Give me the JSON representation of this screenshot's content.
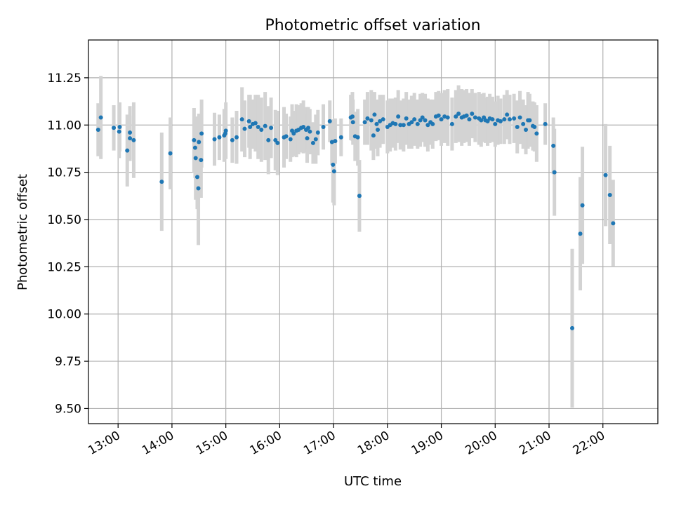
{
  "chart_data": {
    "type": "scatter",
    "title": "Photometric offset variation",
    "xlabel": "UTC time",
    "ylabel": "Photometric offset",
    "x_unit": "hours UTC",
    "xlim": [
      12.45,
      23.02
    ],
    "ylim": [
      9.42,
      11.45
    ],
    "grid": true,
    "x_ticks": [
      "13:00",
      "14:00",
      "15:00",
      "16:00",
      "17:00",
      "18:00",
      "19:00",
      "20:00",
      "21:00",
      "22:00"
    ],
    "x_tick_values": [
      13,
      14,
      15,
      16,
      17,
      18,
      19,
      20,
      21,
      22
    ],
    "y_ticks": [
      "9.50",
      "9.75",
      "10.00",
      "10.25",
      "10.50",
      "10.75",
      "11.00",
      "11.25"
    ],
    "y_tick_values": [
      9.5,
      9.75,
      10.0,
      10.25,
      10.5,
      10.75,
      11.0,
      11.25
    ],
    "colors": {
      "point": "#1f77b4",
      "errorbar": "#d3d3d3",
      "grid": "#b0b0b0"
    },
    "series": [
      {
        "points": [
          [
            12.63,
            10.975,
            0.14
          ],
          [
            12.68,
            11.04,
            0.22
          ],
          [
            12.92,
            10.985,
            0.12
          ],
          [
            13.02,
            10.965,
            0.14
          ],
          [
            13.03,
            10.99,
            0.13
          ],
          [
            13.17,
            10.865,
            0.19
          ],
          [
            13.22,
            10.96,
            0.14
          ],
          [
            13.22,
            10.93,
            0.12
          ],
          [
            13.29,
            10.92,
            0.2
          ],
          [
            13.81,
            10.7,
            0.26
          ],
          [
            13.97,
            10.85,
            0.19
          ],
          [
            14.41,
            10.92,
            0.17
          ],
          [
            14.43,
            10.88,
            0.16
          ],
          [
            14.44,
            10.825,
            0.22
          ],
          [
            14.47,
            10.725,
            0.17
          ],
          [
            14.49,
            10.665,
            0.3
          ],
          [
            14.5,
            10.91,
            0.15
          ],
          [
            14.54,
            10.815,
            0.2
          ],
          [
            14.55,
            10.955,
            0.18
          ],
          [
            14.79,
            10.925,
            0.14
          ],
          [
            14.88,
            10.935,
            0.12
          ],
          [
            14.97,
            10.945,
            0.14
          ],
          [
            14.99,
            10.955,
            0.12
          ],
          [
            15.0,
            10.97,
            0.15
          ],
          [
            15.12,
            10.92,
            0.12
          ],
          [
            15.2,
            10.935,
            0.14
          ],
          [
            15.3,
            11.03,
            0.17
          ],
          [
            15.35,
            10.98,
            0.15
          ],
          [
            15.43,
            11.02,
            0.14
          ],
          [
            15.45,
            10.99,
            0.17
          ],
          [
            15.5,
            11.005,
            0.13
          ],
          [
            15.55,
            11.01,
            0.15
          ],
          [
            15.6,
            10.99,
            0.17
          ],
          [
            15.66,
            10.975,
            0.17
          ],
          [
            15.73,
            10.995,
            0.18
          ],
          [
            15.79,
            10.92,
            0.18
          ],
          [
            15.84,
            10.985,
            0.16
          ],
          [
            15.92,
            10.92,
            0.16
          ],
          [
            15.96,
            10.905,
            0.17
          ],
          [
            16.08,
            10.935,
            0.16
          ],
          [
            16.12,
            10.94,
            0.12
          ],
          [
            16.2,
            10.925,
            0.12
          ],
          [
            16.23,
            10.97,
            0.14
          ],
          [
            16.26,
            10.955,
            0.12
          ],
          [
            16.31,
            10.97,
            0.14
          ],
          [
            16.35,
            10.975,
            0.13
          ],
          [
            16.4,
            10.985,
            0.13
          ],
          [
            16.44,
            10.99,
            0.14
          ],
          [
            16.49,
            10.975,
            0.12
          ],
          [
            16.51,
            10.93,
            0.13
          ],
          [
            16.53,
            10.985,
            0.11
          ],
          [
            16.56,
            10.965,
            0.12
          ],
          [
            16.62,
            10.905,
            0.11
          ],
          [
            16.67,
            10.925,
            0.13
          ],
          [
            16.71,
            10.96,
            0.12
          ],
          [
            16.81,
            10.99,
            0.12
          ],
          [
            16.93,
            11.02,
            0.11
          ],
          [
            16.97,
            10.91,
            0.12
          ],
          [
            16.99,
            10.79,
            0.2
          ],
          [
            17.01,
            10.755,
            0.18
          ],
          [
            17.03,
            10.915,
            0.12
          ],
          [
            17.14,
            10.935,
            0.1
          ],
          [
            17.32,
            11.04,
            0.12
          ],
          [
            17.35,
            11.045,
            0.13
          ],
          [
            17.36,
            11.015,
            0.12
          ],
          [
            17.4,
            10.94,
            0.13
          ],
          [
            17.45,
            10.935,
            0.15
          ],
          [
            17.48,
            10.625,
            0.19
          ],
          [
            17.58,
            11.015,
            0.12
          ],
          [
            17.63,
            11.035,
            0.14
          ],
          [
            17.7,
            11.025,
            0.16
          ],
          [
            17.74,
            10.945,
            0.13
          ],
          [
            17.76,
            11.055,
            0.12
          ],
          [
            17.8,
            11.005,
            0.13
          ],
          [
            17.82,
            10.975,
            0.14
          ],
          [
            17.86,
            11.02,
            0.14
          ],
          [
            17.92,
            11.03,
            0.13
          ],
          [
            18.0,
            10.99,
            0.14
          ],
          [
            18.05,
            11.0,
            0.14
          ],
          [
            18.1,
            11.01,
            0.13
          ],
          [
            18.15,
            11.005,
            0.14
          ],
          [
            18.2,
            11.045,
            0.14
          ],
          [
            18.24,
            11.0,
            0.13
          ],
          [
            18.3,
            11.0,
            0.14
          ],
          [
            18.35,
            11.035,
            0.14
          ],
          [
            18.4,
            11.005,
            0.13
          ],
          [
            18.45,
            11.015,
            0.14
          ],
          [
            18.5,
            11.03,
            0.14
          ],
          [
            18.56,
            11.005,
            0.13
          ],
          [
            18.61,
            11.025,
            0.14
          ],
          [
            18.65,
            11.04,
            0.13
          ],
          [
            18.7,
            11.025,
            0.14
          ],
          [
            18.75,
            11.0,
            0.14
          ],
          [
            18.8,
            11.015,
            0.12
          ],
          [
            18.84,
            11.005,
            0.13
          ],
          [
            18.9,
            11.045,
            0.13
          ],
          [
            18.95,
            11.05,
            0.13
          ],
          [
            19.0,
            11.03,
            0.14
          ],
          [
            19.06,
            11.045,
            0.14
          ],
          [
            19.12,
            11.04,
            0.15
          ],
          [
            19.2,
            11.005,
            0.14
          ],
          [
            19.27,
            11.045,
            0.14
          ],
          [
            19.32,
            11.06,
            0.15
          ],
          [
            19.38,
            11.04,
            0.15
          ],
          [
            19.42,
            11.045,
            0.14
          ],
          [
            19.47,
            11.05,
            0.14
          ],
          [
            19.52,
            11.03,
            0.14
          ],
          [
            19.57,
            11.06,
            0.13
          ],
          [
            19.63,
            11.04,
            0.13
          ],
          [
            19.7,
            11.035,
            0.14
          ],
          [
            19.74,
            11.025,
            0.14
          ],
          [
            19.79,
            11.04,
            0.13
          ],
          [
            19.82,
            11.025,
            0.12
          ],
          [
            19.86,
            11.02,
            0.13
          ],
          [
            19.9,
            11.035,
            0.13
          ],
          [
            19.95,
            11.03,
            0.12
          ],
          [
            20.0,
            11.005,
            0.12
          ],
          [
            20.05,
            11.025,
            0.13
          ],
          [
            20.1,
            11.02,
            0.12
          ],
          [
            20.17,
            11.03,
            0.13
          ],
          [
            20.22,
            11.055,
            0.13
          ],
          [
            20.27,
            11.03,
            0.13
          ],
          [
            20.35,
            11.035,
            0.13
          ],
          [
            20.41,
            10.99,
            0.14
          ],
          [
            20.46,
            11.04,
            0.14
          ],
          [
            20.52,
            11.005,
            0.13
          ],
          [
            20.57,
            10.975,
            0.13
          ],
          [
            20.61,
            11.025,
            0.15
          ],
          [
            20.64,
            11.025,
            0.14
          ],
          [
            20.7,
            10.995,
            0.13
          ],
          [
            20.73,
            10.99,
            0.13
          ],
          [
            20.77,
            10.955,
            0.15
          ],
          [
            20.93,
            11.005,
            0.11
          ],
          [
            21.08,
            10.89,
            0.15
          ],
          [
            21.1,
            10.75,
            0.23
          ],
          [
            21.43,
            9.925,
            0.42
          ],
          [
            21.58,
            10.425,
            0.3
          ],
          [
            21.62,
            10.575,
            0.31
          ],
          [
            22.05,
            10.735,
            0.27
          ],
          [
            22.13,
            10.63,
            0.26
          ],
          [
            22.19,
            10.48,
            0.23
          ]
        ]
      }
    ]
  }
}
